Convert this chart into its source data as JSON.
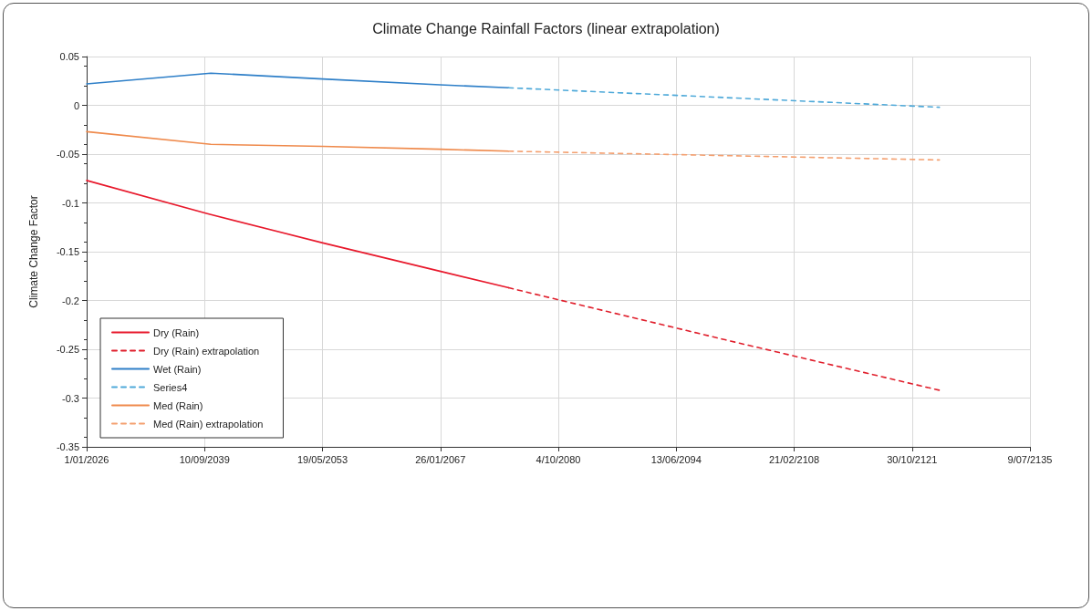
{
  "chart_data": {
    "type": "line",
    "title": "Climate Change Rainfall Factors (linear extrapolation)",
    "ylabel": "Climate Change Factor",
    "xlim": [
      "2026-01-01",
      "2135-07-09"
    ],
    "xticks": [
      {
        "value": "2026-01-01",
        "label": "1/01/2026"
      },
      {
        "value": "2039-09-10",
        "label": "10/09/2039"
      },
      {
        "value": "2053-05-19",
        "label": "19/05/2053"
      },
      {
        "value": "2067-01-26",
        "label": "26/01/2067"
      },
      {
        "value": "2080-10-04",
        "label": "4/10/2080"
      },
      {
        "value": "2094-06-13",
        "label": "13/06/2094"
      },
      {
        "value": "2108-02-21",
        "label": "21/02/2108"
      },
      {
        "value": "2121-10-30",
        "label": "30/10/2121"
      },
      {
        "value": "2135-07-09",
        "label": "9/07/2135"
      }
    ],
    "ylim": [
      -0.35,
      0.05
    ],
    "yticks": [
      0.05,
      0,
      -0.05,
      -0.1,
      -0.15,
      -0.2,
      -0.25,
      -0.3,
      -0.35
    ],
    "grid": true,
    "legend": "bottom left",
    "marker": "none",
    "series": [
      {
        "name": "Dry (Rain)",
        "color": "#e8192c",
        "line_style": "solid",
        "x": [
          "2026-01-01",
          "2040-01-01",
          "2053-06-01",
          "2067-01-01",
          "2075-01-01"
        ],
        "values": [
          -0.077,
          -0.111,
          -0.141,
          -0.17,
          -0.187
        ]
      },
      {
        "name": "Dry (Rain) extrapolation",
        "color": "#e01f2c",
        "line_style": "dashed",
        "x": [
          "2075-01-01",
          "2100-01-01",
          "2125-01-01"
        ],
        "values": [
          -0.187,
          -0.24,
          -0.292
        ]
      },
      {
        "name": "Wet (Rain)",
        "color": "#2e7fc8",
        "line_style": "solid",
        "x": [
          "2026-01-01",
          "2040-06-01",
          "2053-06-01",
          "2067-01-01",
          "2075-01-01"
        ],
        "values": [
          0.022,
          0.033,
          0.027,
          0.021,
          0.018
        ]
      },
      {
        "name": "Series4",
        "color": "#4ea9d9",
        "line_style": "dashed",
        "x": [
          "2075-01-01",
          "2125-01-01"
        ],
        "values": [
          0.018,
          -0.002
        ]
      },
      {
        "name": "Med (Rain)",
        "color": "#ef8a4c",
        "line_style": "solid",
        "x": [
          "2026-01-01",
          "2040-06-01",
          "2053-06-01",
          "2067-01-01",
          "2075-01-01"
        ],
        "values": [
          -0.027,
          -0.04,
          -0.042,
          -0.045,
          -0.047
        ]
      },
      {
        "name": "Med (Rain) extrapolation",
        "color": "#f4a070",
        "line_style": "dashed",
        "x": [
          "2075-01-01",
          "2125-01-01"
        ],
        "values": [
          -0.047,
          -0.056
        ]
      }
    ]
  }
}
